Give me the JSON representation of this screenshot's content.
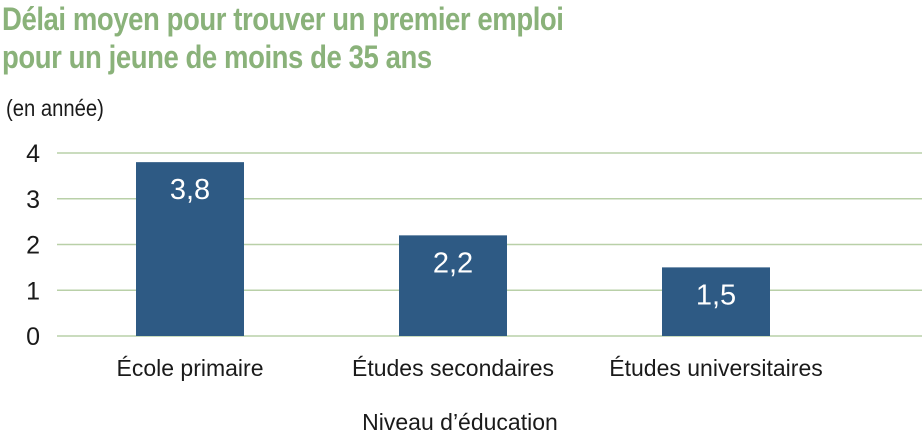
{
  "title_lines": [
    "Délai moyen pour trouver un premier emploi",
    "pour un jeune de moins de 35 ans"
  ],
  "colors": {
    "title": "#8ab27a",
    "bar": "#2e5a84",
    "grid": "#b9d0a8",
    "value_label": "#ffffff",
    "text": "#1a1a1a"
  },
  "chart_data": {
    "type": "bar",
    "unit_label": "(en année)",
    "xlabel": "Niveau d’éducation",
    "categories": [
      "École primaire",
      "Études secondaires",
      "Études universitaires"
    ],
    "values": [
      3.8,
      2.2,
      1.5
    ],
    "value_labels": [
      "3,8",
      "2,2",
      "1,5"
    ],
    "yticks": [
      "0",
      "1",
      "2",
      "3",
      "4"
    ],
    "ylim": [
      0,
      4
    ],
    "grid": true,
    "legend": "none"
  }
}
